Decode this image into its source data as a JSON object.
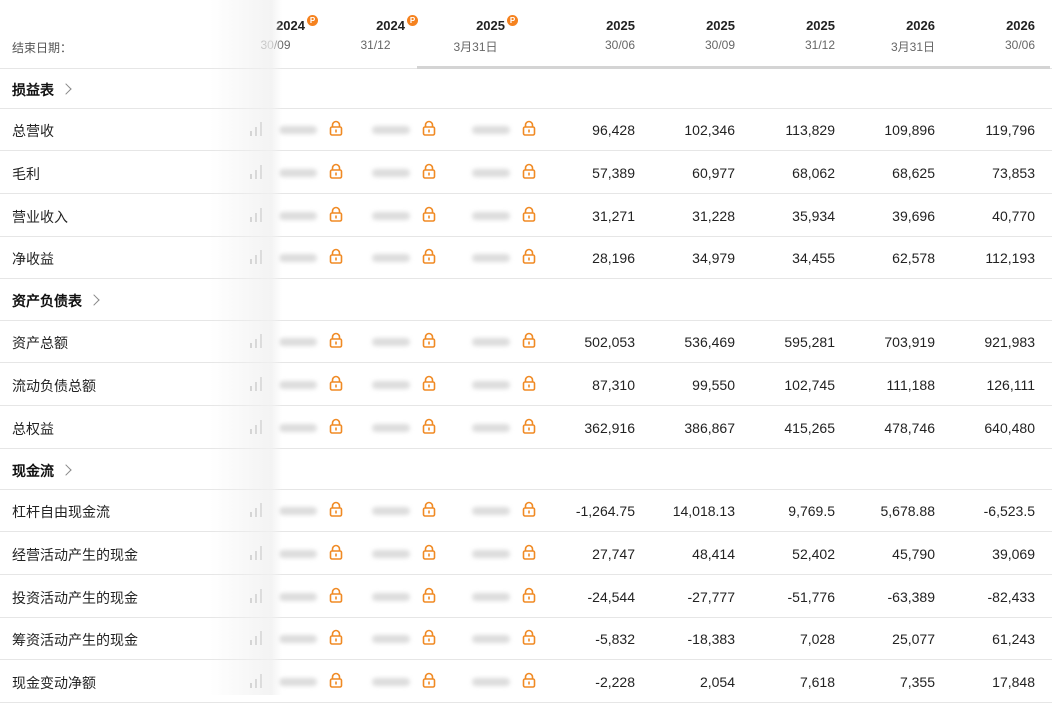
{
  "header": {
    "end_date_label": "结束日期：",
    "columns": [
      {
        "year": "2024",
        "date": "30/09",
        "locked": true
      },
      {
        "year": "2024",
        "date": "31/12",
        "locked": true
      },
      {
        "year": "2025",
        "date": "3月31日",
        "locked": true
      },
      {
        "year": "2025",
        "date": "30/06",
        "locked": false
      },
      {
        "year": "2025",
        "date": "30/09",
        "locked": false
      },
      {
        "year": "2025",
        "date": "31/12",
        "locked": false
      },
      {
        "year": "2026",
        "date": "3月31日",
        "locked": false
      },
      {
        "year": "2026",
        "date": "30/06",
        "locked": false
      }
    ],
    "premium_badge": "P"
  },
  "rows": [
    {
      "type": "section",
      "label": "损益表"
    },
    {
      "type": "data",
      "label": "总营收",
      "values": [
        "96,428",
        "102,346",
        "113,829",
        "109,896",
        "119,796"
      ]
    },
    {
      "type": "data",
      "label": "毛利",
      "values": [
        "57,389",
        "60,977",
        "68,062",
        "68,625",
        "73,853"
      ]
    },
    {
      "type": "data",
      "label": "营业收入",
      "values": [
        "31,271",
        "31,228",
        "35,934",
        "39,696",
        "40,770"
      ]
    },
    {
      "type": "data",
      "label": "净收益",
      "values": [
        "28,196",
        "34,979",
        "34,455",
        "62,578",
        "112,193"
      ]
    },
    {
      "type": "section",
      "label": "资产负债表"
    },
    {
      "type": "data",
      "label": "资产总额",
      "values": [
        "502,053",
        "536,469",
        "595,281",
        "703,919",
        "921,983"
      ]
    },
    {
      "type": "data",
      "label": "流动负债总额",
      "values": [
        "87,310",
        "99,550",
        "102,745",
        "111,188",
        "126,111"
      ]
    },
    {
      "type": "data",
      "label": "总权益",
      "values": [
        "362,916",
        "386,867",
        "415,265",
        "478,746",
        "640,480"
      ]
    },
    {
      "type": "section",
      "label": "现金流"
    },
    {
      "type": "data",
      "label": "杠杆自由现金流",
      "values": [
        "-1,264.75",
        "14,018.13",
        "9,769.5",
        "5,678.88",
        "-6,523.5"
      ]
    },
    {
      "type": "data",
      "label": "经营活动产生的现金",
      "values": [
        "27,747",
        "48,414",
        "52,402",
        "45,790",
        "39,069"
      ]
    },
    {
      "type": "data",
      "label": "投资活动产生的现金",
      "values": [
        "-24,544",
        "-27,777",
        "-51,776",
        "-63,389",
        "-82,433"
      ]
    },
    {
      "type": "data",
      "label": "筹资活动产生的现金",
      "values": [
        "-5,832",
        "-18,383",
        "7,028",
        "25,077",
        "61,243"
      ]
    },
    {
      "type": "data",
      "label": "现金变动净额",
      "values": [
        "-2,228",
        "2,054",
        "7,618",
        "7,355",
        "17,848"
      ]
    }
  ],
  "icons": {
    "chart": "bar-chart-icon",
    "lock": "lock-icon",
    "chevron": "chevron-right-icon"
  },
  "colors": {
    "accent": "#f5821f",
    "lock": "#f08a24",
    "border": "#e6e6e6",
    "text": "#222222",
    "muted": "#666666"
  }
}
